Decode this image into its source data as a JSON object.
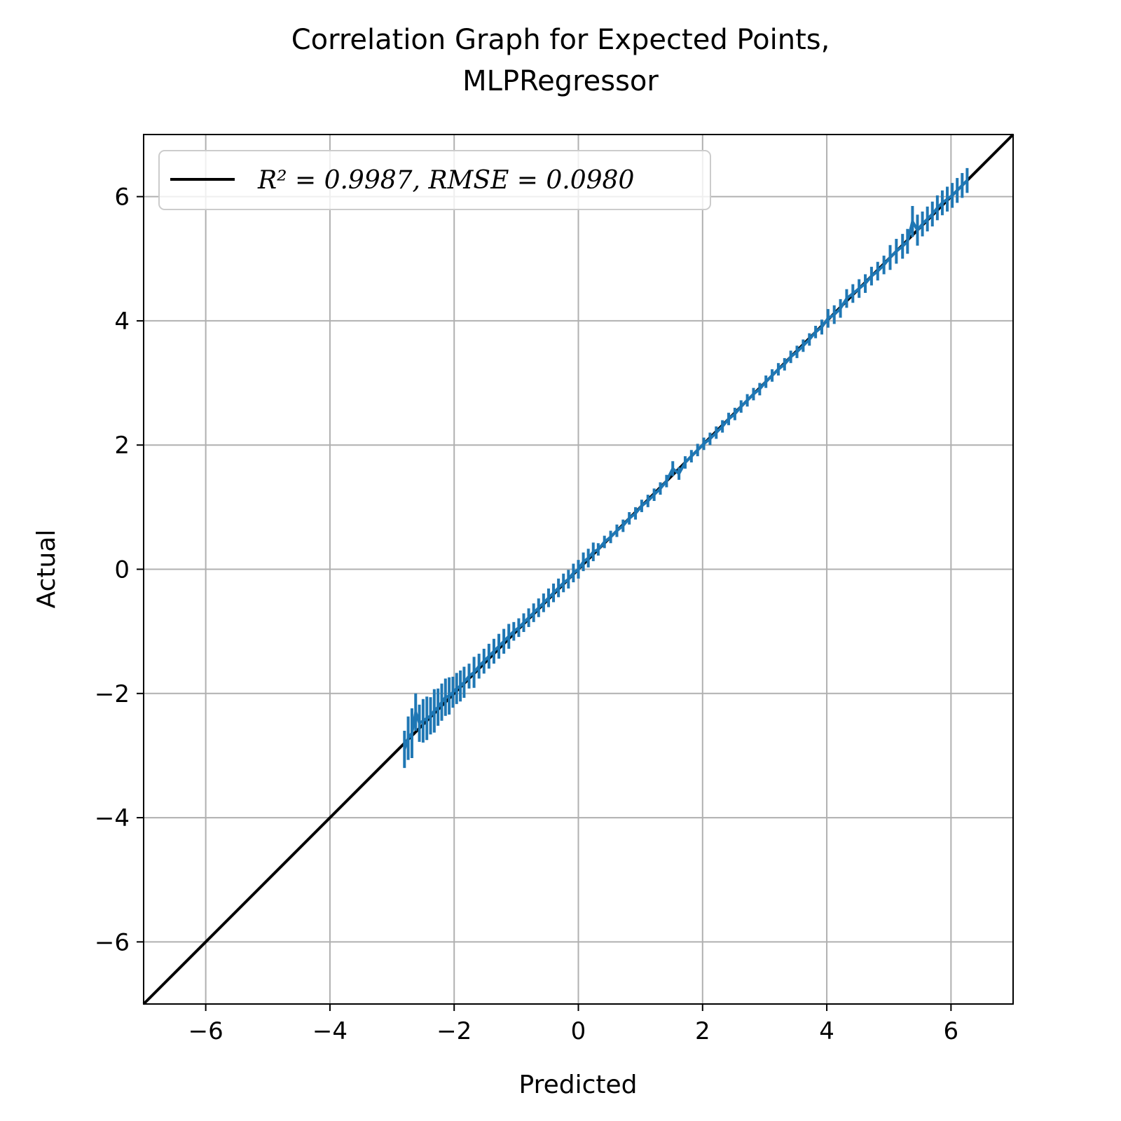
{
  "chart_data": {
    "type": "line",
    "title": [
      "Correlation Graph for Expected Points,",
      "MLPRegressor"
    ],
    "xlabel": "Predicted",
    "ylabel": "Actual",
    "xlim": [
      -7,
      7
    ],
    "ylim": [
      -7,
      7
    ],
    "xticks": [
      -6,
      -4,
      -2,
      0,
      2,
      4,
      6
    ],
    "yticks": [
      -6,
      -4,
      -2,
      0,
      2,
      4,
      6
    ],
    "xtick_labels": [
      "−6",
      "−4",
      "−2",
      "0",
      "2",
      "4",
      "6"
    ],
    "ytick_labels": [
      "−6",
      "−4",
      "−2",
      "0",
      "2",
      "4",
      "6"
    ],
    "grid": true,
    "legend_position": "upper-left",
    "legend_label": "R² = 0.9987, RMSE = 0.0980",
    "colors": {
      "reference": "#000000",
      "data": "#1f77b4",
      "grid": "#b0b0b0"
    },
    "series": [
      {
        "name": "R² = 0.9987, RMSE = 0.0980",
        "x": [
          -7,
          7
        ],
        "y": [
          -7,
          7
        ]
      },
      {
        "x": [
          -2.8,
          -2.74,
          -2.68,
          -2.62,
          -2.56,
          -2.5,
          -2.44,
          -2.38,
          -2.32,
          -2.26,
          -2.2,
          -2.14,
          -2.08,
          -2.02,
          -1.96,
          -1.9,
          -1.84,
          -1.76,
          -1.68,
          -1.6,
          -1.52,
          -1.44,
          -1.36,
          -1.28,
          -1.2,
          -1.12,
          -1.04,
          -0.96,
          -0.88,
          -0.8,
          -0.72,
          -0.64,
          -0.56,
          -0.48,
          -0.4,
          -0.32,
          -0.24,
          -0.16,
          -0.08,
          0.0,
          0.08,
          0.16,
          0.24,
          0.32,
          0.42,
          0.52,
          0.62,
          0.72,
          0.82,
          0.92,
          1.02,
          1.12,
          1.22,
          1.32,
          1.42,
          1.52,
          1.62,
          1.72,
          1.82,
          1.92,
          2.02,
          2.12,
          2.22,
          2.32,
          2.42,
          2.52,
          2.62,
          2.72,
          2.82,
          2.92,
          3.02,
          3.12,
          3.22,
          3.32,
          3.42,
          3.52,
          3.62,
          3.72,
          3.82,
          3.92,
          4.02,
          4.12,
          4.22,
          4.32,
          4.42,
          4.52,
          4.62,
          4.72,
          4.82,
          4.92,
          5.02,
          5.12,
          5.22,
          5.3,
          5.38,
          5.46,
          5.54,
          5.62,
          5.7,
          5.78,
          5.86,
          5.94,
          6.02,
          6.1,
          6.18,
          6.26
        ],
        "y": [
          -2.9,
          -2.72,
          -2.64,
          -2.3,
          -2.48,
          -2.44,
          -2.4,
          -2.36,
          -2.28,
          -2.22,
          -2.14,
          -2.06,
          -2.04,
          -1.98,
          -1.92,
          -1.88,
          -1.82,
          -1.72,
          -1.66,
          -1.56,
          -1.48,
          -1.4,
          -1.32,
          -1.24,
          -1.16,
          -1.08,
          -1.0,
          -0.94,
          -0.86,
          -0.78,
          -0.7,
          -0.62,
          -0.54,
          -0.46,
          -0.38,
          -0.3,
          -0.22,
          -0.16,
          -0.06,
          0.0,
          0.12,
          0.18,
          0.28,
          0.32,
          0.44,
          0.52,
          0.62,
          0.7,
          0.82,
          0.9,
          1.02,
          1.1,
          1.2,
          1.3,
          1.42,
          1.62,
          1.54,
          1.72,
          1.82,
          1.92,
          2.02,
          2.1,
          2.2,
          2.3,
          2.42,
          2.5,
          2.62,
          2.72,
          2.82,
          2.9,
          3.02,
          3.12,
          3.22,
          3.3,
          3.42,
          3.5,
          3.6,
          3.7,
          3.82,
          3.9,
          4.04,
          4.1,
          4.2,
          4.36,
          4.44,
          4.52,
          4.6,
          4.72,
          4.8,
          4.9,
          5.02,
          5.12,
          5.2,
          5.28,
          5.6,
          5.46,
          5.56,
          5.64,
          5.72,
          5.82,
          5.9,
          5.96,
          6.02,
          6.1,
          6.18,
          6.26
        ],
        "yerr": [
          0.3,
          0.35,
          0.4,
          0.3,
          0.3,
          0.35,
          0.35,
          0.3,
          0.35,
          0.3,
          0.3,
          0.3,
          0.3,
          0.25,
          0.25,
          0.25,
          0.25,
          0.2,
          0.25,
          0.2,
          0.2,
          0.2,
          0.2,
          0.2,
          0.2,
          0.2,
          0.15,
          0.15,
          0.15,
          0.15,
          0.15,
          0.15,
          0.15,
          0.15,
          0.15,
          0.15,
          0.15,
          0.15,
          0.15,
          0.15,
          0.15,
          0.15,
          0.15,
          0.1,
          0.1,
          0.1,
          0.1,
          0.1,
          0.1,
          0.1,
          0.1,
          0.1,
          0.1,
          0.1,
          0.1,
          0.12,
          0.1,
          0.1,
          0.1,
          0.1,
          0.1,
          0.1,
          0.1,
          0.1,
          0.1,
          0.1,
          0.1,
          0.1,
          0.1,
          0.1,
          0.1,
          0.1,
          0.1,
          0.1,
          0.1,
          0.1,
          0.1,
          0.1,
          0.1,
          0.12,
          0.15,
          0.15,
          0.15,
          0.15,
          0.15,
          0.15,
          0.15,
          0.15,
          0.15,
          0.15,
          0.2,
          0.2,
          0.2,
          0.2,
          0.25,
          0.25,
          0.2,
          0.2,
          0.2,
          0.2,
          0.2,
          0.2,
          0.2,
          0.2,
          0.2,
          0.2
        ]
      }
    ]
  }
}
